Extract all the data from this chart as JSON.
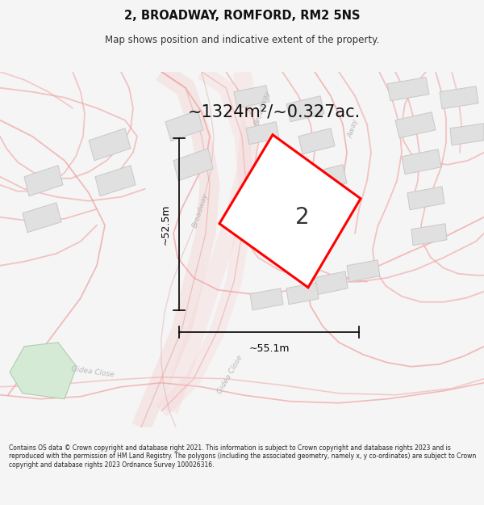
{
  "title": "2, BROADWAY, ROMFORD, RM2 5NS",
  "subtitle": "Map shows position and indicative extent of the property.",
  "area_text": "~1324m²/~0.327ac.",
  "width_text": "~55.1m",
  "height_text": "~52.5m",
  "property_number": "2",
  "footer_text": "Contains OS data © Crown copyright and database right 2021. This information is subject to Crown copyright and database rights 2023 and is reproduced with the permission of HM Land Registry. The polygons (including the associated geometry, namely x, y co-ordinates) are subject to Crown copyright and database rights 2023 Ordnance Survey 100026316.",
  "bg_color": "#f5f5f5",
  "map_bg_color": "#ffffff",
  "plot_color": "#ff0000",
  "building_color": "#e0e0e0",
  "building_edge": "#c8c8c8",
  "road_line_color": "#f5a0a0",
  "road_fill_color": "#f5d0d0",
  "label_color": "#b8b8b8",
  "dim_color": "#000000",
  "park_fill": "#d4ead4",
  "park_edge": "#b0ccb0"
}
